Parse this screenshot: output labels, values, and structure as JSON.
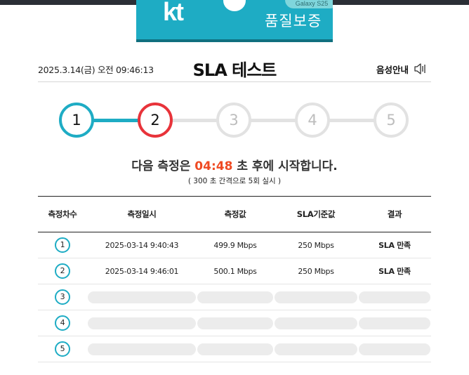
{
  "brand": {
    "logo_text": "kt",
    "quality_label": "품질보증",
    "pill_text": "Galaxy S25"
  },
  "header": {
    "datetime": "2025.3.14(금) 오전 09:46:13",
    "title": "SLA 테스트",
    "voice_guide_label": "음성안내"
  },
  "steps": {
    "items": [
      "1",
      "2",
      "3",
      "4",
      "5"
    ],
    "current": 2,
    "colors": {
      "done": "#1eacc4",
      "current": "#e8333a",
      "pending": "#e2e2e2"
    }
  },
  "next_test": {
    "prefix": "다음 측정은",
    "countdown": "04:48",
    "suffix": "초 후에 시작합니다.",
    "interval_note": "( 300 초 간격으로 5회 실시 )"
  },
  "table": {
    "columns": [
      "측정차수",
      "측정일시",
      "측정값",
      "SLA기준값",
      "결과"
    ],
    "rows": [
      {
        "round": "1",
        "datetime": "2025-03-14 9:40:43",
        "value": "499.9 Mbps",
        "sla": "250 Mbps",
        "result": "SLA 만족"
      },
      {
        "round": "2",
        "datetime": "2025-03-14 9:46:01",
        "value": "500.1 Mbps",
        "sla": "250 Mbps",
        "result": "SLA 만족"
      },
      {
        "round": "3"
      },
      {
        "round": "4"
      },
      {
        "round": "5"
      }
    ]
  }
}
